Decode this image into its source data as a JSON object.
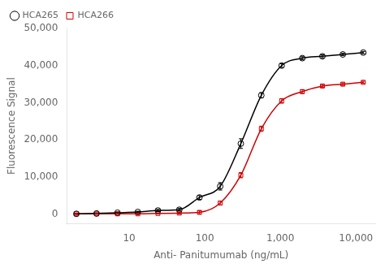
{
  "chart_data": {
    "type": "scatter",
    "xlabel": "Anti- Panitumumab (ng/mL)",
    "ylabel": "Fluorescence Signal",
    "log": "x",
    "xlim": [
      1.5,
      18000
    ],
    "xticks": [
      10,
      100,
      {
        "value": 1000,
        "label": "1,000"
      },
      {
        "value": 10000,
        "label": "10,000"
      }
    ],
    "ylim": [
      -2500,
      50000
    ],
    "yticks": [
      0,
      {
        "value": 10000,
        "label": "10,000"
      },
      {
        "value": 20000,
        "label": "20,000"
      },
      {
        "value": 30000,
        "label": "30,000"
      },
      {
        "value": 40000,
        "label": "40,000"
      },
      {
        "value": 50000,
        "label": "50,000"
      }
    ],
    "grid": false,
    "legend": "upper left",
    "series": [
      {
        "name": "HCA265",
        "color": "#000000",
        "marker": "circle",
        "line_style": "solid",
        "x": [
          2.0,
          3.7,
          7.0,
          13.0,
          24.0,
          46.0,
          85.0,
          160.0,
          300.0,
          560.0,
          1040.0,
          1950.0,
          3600.0,
          6700.0,
          12500.0
        ],
        "values": [
          100,
          200,
          400,
          600,
          1000,
          1200,
          4500,
          7500,
          19000,
          32000,
          40000,
          42000,
          42500,
          43000,
          43500
        ],
        "yerr": [
          150,
          150,
          150,
          200,
          300,
          350,
          500,
          1000,
          1300,
          700,
          500,
          400,
          400,
          300,
          300
        ]
      },
      {
        "name": "HCA266",
        "color": "#cc0000",
        "marker": "square",
        "line_style": "solid",
        "x": [
          2.0,
          3.7,
          7.0,
          13.0,
          24.0,
          46.0,
          85.0,
          160.0,
          300.0,
          560.0,
          1040.0,
          1950.0,
          3600.0,
          6700.0,
          12500.0
        ],
        "values": [
          100,
          100,
          100,
          100,
          200,
          300,
          500,
          3000,
          10500,
          23000,
          30500,
          33000,
          34500,
          35000,
          35500
        ],
        "yerr": [
          150,
          150,
          150,
          150,
          150,
          200,
          400,
          500,
          700,
          700,
          600,
          500,
          400,
          350,
          300
        ]
      }
    ]
  }
}
